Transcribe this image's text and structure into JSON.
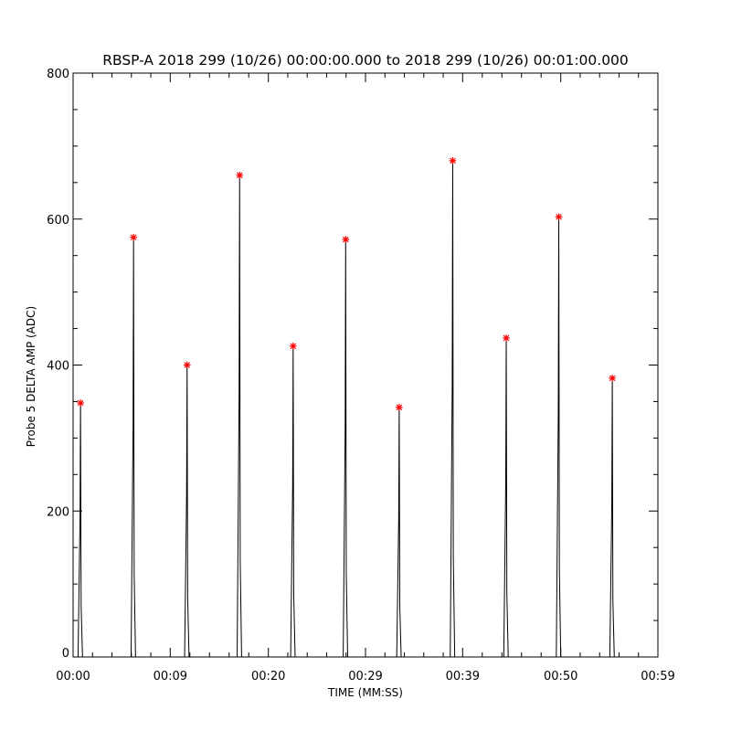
{
  "chart_data": {
    "type": "line",
    "title": "RBSP-A 2018 299 (10/26) 00:00:00.000 to 2018 299 (10/26) 00:01:00.000",
    "xlabel": "TIME (MM:SS)",
    "ylabel": "Probe 5 DELTA AMP (ADC)",
    "xlim": [
      0,
      59
    ],
    "ylim": [
      0,
      800
    ],
    "x_ticks": [
      {
        "value": 0,
        "label": "00:00"
      },
      {
        "value": 9.8,
        "label": "00:09"
      },
      {
        "value": 19.7,
        "label": "00:20"
      },
      {
        "value": 29.5,
        "label": "00:29"
      },
      {
        "value": 39.3,
        "label": "00:39"
      },
      {
        "value": 49.2,
        "label": "00:50"
      },
      {
        "value": 59,
        "label": "00:59"
      }
    ],
    "y_ticks": [
      0,
      200,
      400,
      600,
      800
    ],
    "peak_marker_color": "#ff0000",
    "line_color": "#000000",
    "peaks": [
      {
        "x": 0.75,
        "y": 348
      },
      {
        "x": 6.1,
        "y": 575
      },
      {
        "x": 11.5,
        "y": 400
      },
      {
        "x": 16.8,
        "y": 660
      },
      {
        "x": 22.2,
        "y": 426
      },
      {
        "x": 27.5,
        "y": 572
      },
      {
        "x": 32.9,
        "y": 342
      },
      {
        "x": 38.3,
        "y": 680
      },
      {
        "x": 43.7,
        "y": 437
      },
      {
        "x": 49.0,
        "y": 603
      },
      {
        "x": 54.4,
        "y": 382
      }
    ]
  }
}
